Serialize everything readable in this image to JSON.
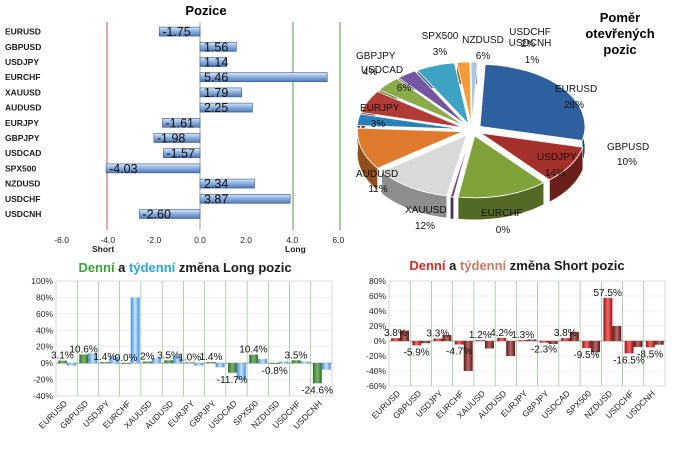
{
  "chart_data": [
    {
      "type": "bar",
      "orientation": "horizontal",
      "title": "Pozice",
      "categories": [
        "EURUSD",
        "GBPUSD",
        "USDJPY",
        "EURCHF",
        "XAUUSD",
        "AUDUSD",
        "EURJPY",
        "GBPJPY",
        "USDCAD",
        "SPX500",
        "NZDUSD",
        "USDCHF",
        "USDCNH"
      ],
      "values": [
        -1.75,
        1.56,
        1.14,
        5.46,
        1.79,
        2.25,
        -1.61,
        -1.98,
        -1.57,
        -4.03,
        2.34,
        3.87,
        -2.6
      ],
      "value_labels": [
        "-1.75",
        "1.56",
        "1.14",
        "5.46",
        "1.79",
        "2.25",
        "-1.61",
        "-1.98",
        "-1.57",
        "-4.03",
        "2.34",
        "3.87",
        "-2.60"
      ],
      "xlim": [
        -6.0,
        6.0
      ],
      "xticks": [
        "-6.0",
        "-4.0",
        "-2.0",
        "0.0",
        "2.0",
        "4.0",
        "6.0"
      ],
      "markers": {
        "short": "Short",
        "long": "Long"
      },
      "colors": {
        "bar": "#5b86c5",
        "short_line": "#c0504d",
        "long_line": "#4e9a3f"
      }
    },
    {
      "type": "pie",
      "title_lines": [
        "Poměr",
        "otevřených",
        "pozic"
      ],
      "slices": [
        {
          "label": "EURUSD",
          "pct_label": "28%",
          "value": 28,
          "color": "#2e5f9e"
        },
        {
          "label": "GBPUSD",
          "pct_label": "10%",
          "value": 10,
          "color": "#a53029"
        },
        {
          "label": "USDJPY",
          "pct_label": "14%",
          "value": 14,
          "color": "#7fa33a"
        },
        {
          "label": "EURCHF",
          "pct_label": "0%",
          "value": 0.5,
          "color": "#6a4c93"
        },
        {
          "label": "XAUUSD",
          "pct_label": "12%",
          "value": 12,
          "color": "#d9d9d9"
        },
        {
          "label": "AUDUSD",
          "pct_label": "11%",
          "value": 11,
          "color": "#e07a2c"
        },
        {
          "label": "EURJPY",
          "pct_label": "3%",
          "value": 3,
          "color": "#2c7fb8"
        },
        {
          "label": "USDCAD",
          "pct_label": "6%",
          "value": 6,
          "color": "#b33b35"
        },
        {
          "label": "GBPJPY",
          "pct_label": "4%",
          "value": 4,
          "color": "#8aab4a"
        },
        {
          "label": "SPX500",
          "pct_label": "3%",
          "value": 3,
          "color": "#7556a3"
        },
        {
          "label": "NZDUSD",
          "pct_label": "6%",
          "value": 6,
          "color": "#3ea2c2"
        },
        {
          "label": "USDCHF",
          "pct_label": "2%",
          "value": 2,
          "color": "#f29b38"
        },
        {
          "label": "USDCNH",
          "pct_label": "1%",
          "value": 1,
          "color": "#a9c6e8"
        }
      ]
    },
    {
      "type": "bar",
      "title_parts": [
        {
          "text": "Denní",
          "color": "#3aa23a"
        },
        {
          "text": " a ",
          "color": "#1a1a1a"
        },
        {
          "text": "týdenní",
          "color": "#2aa6e0"
        },
        {
          "text": " změna Long pozic",
          "color": "#1a1a1a"
        }
      ],
      "categories": [
        "EURUSD",
        "GBPUSD",
        "USDJPY",
        "EURCHF",
        "XAUUSD",
        "AUDUSD",
        "EURJPY",
        "GBPJPY",
        "USDCAD",
        "SPX500",
        "NZDUSD",
        "USDCHF",
        "USDCNH"
      ],
      "series": [
        {
          "name": "Denní",
          "values": [
            3.1,
            10.6,
            1.4,
            0.0,
            2.0,
            3.5,
            1.0,
            1.4,
            -11.7,
            10.4,
            -0.8,
            3.5,
            -24.6
          ],
          "color": "#3e8a3e"
        },
        {
          "name": "Týdenní",
          "values": [
            -3.0,
            12.0,
            8.0,
            80.0,
            6.0,
            9.0,
            -3.0,
            -5.0,
            -20.0,
            5.0,
            2.0,
            2.0,
            -8.0
          ],
          "color": "#5aaaf0"
        }
      ],
      "value_labels": [
        "3.1%",
        "10.6%",
        "1.4%",
        "0.0%",
        "2%",
        "3.5%",
        "1.0%",
        "1.4%",
        "-11.7%",
        "10.4%",
        "-0.8%",
        "3.5%",
        "-24.6%"
      ],
      "ylim": [
        -40,
        100
      ],
      "yticks": [
        "-40%",
        "-20%",
        "0%",
        "20%",
        "40%",
        "60%",
        "80%",
        "100%"
      ]
    },
    {
      "type": "bar",
      "title_parts": [
        {
          "text": "Denní",
          "color": "#d12a2a"
        },
        {
          "text": " a ",
          "color": "#1a1a1a"
        },
        {
          "text": "týdenní",
          "color": "#c87a63"
        },
        {
          "text": " změna Short pozic",
          "color": "#1a1a1a"
        }
      ],
      "categories": [
        "EURUSD",
        "GBPUSD",
        "USDJPY",
        "EURCHF",
        "XAUUSD",
        "AUDUSD",
        "EURJPY",
        "GBPJPY",
        "USDCAD",
        "SPX500",
        "NZDUSD",
        "USDCHF",
        "USDCNH"
      ],
      "series": [
        {
          "name": "Denní",
          "values": [
            3.8,
            -5.9,
            3.3,
            -4.7,
            1.2,
            4.2,
            1.3,
            -2.3,
            3.8,
            -9.5,
            57.5,
            -16.5,
            -8.5
          ],
          "color": "#c0211d"
        },
        {
          "name": "Týdenní",
          "values": [
            14.0,
            -3.0,
            8.0,
            -40.0,
            -10.0,
            -20.0,
            2.0,
            -4.0,
            12.0,
            -15.0,
            20.0,
            -8.0,
            -5.0
          ],
          "color": "#8b2a2a"
        }
      ],
      "value_labels": [
        "3.8%",
        "-5.9%",
        "3.3%",
        "-4.7%",
        "1.2%",
        "4.2%",
        "1.3%",
        "-2.3%",
        "3.8%",
        "-9.5%",
        "57.5%",
        "-16.5%",
        "-8.5%"
      ],
      "ylim": [
        -60,
        80
      ],
      "yticks": [
        "-60%",
        "-40%",
        "-20%",
        "0%",
        "20%",
        "40%",
        "60%",
        "80%"
      ]
    }
  ]
}
